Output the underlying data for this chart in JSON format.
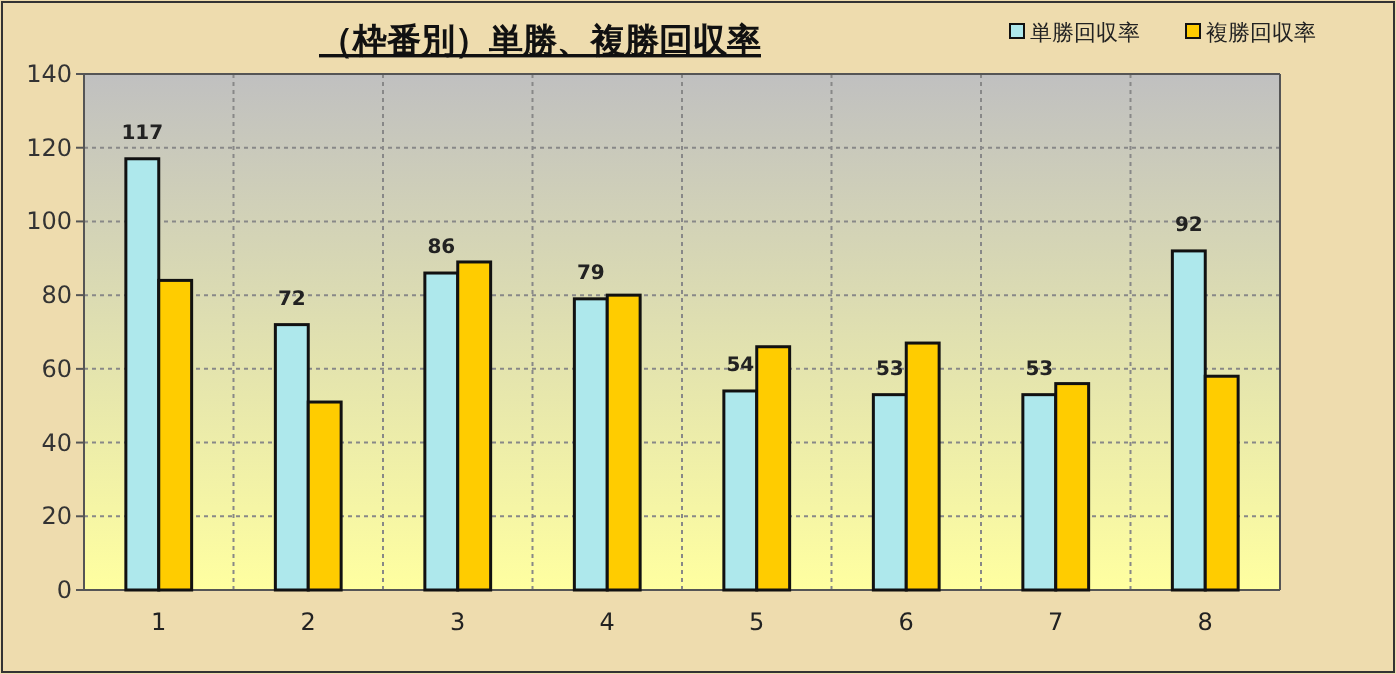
{
  "chart_data": {
    "type": "bar",
    "title": "（枠番別）単勝、複勝回収率",
    "categories": [
      "1",
      "2",
      "3",
      "4",
      "5",
      "6",
      "7",
      "8"
    ],
    "series": [
      {
        "name": "単勝回収率",
        "color": "#aee8ec",
        "values": [
          117,
          72,
          86,
          79,
          54,
          53,
          53,
          92
        ],
        "value_labels": [
          "117",
          "72",
          "86",
          "79",
          "54",
          "53",
          "53",
          "92"
        ]
      },
      {
        "name": "複勝回収率",
        "color": "#ffcc00",
        "values": [
          84,
          51,
          89,
          80,
          66,
          67,
          56,
          58
        ]
      }
    ],
    "ylim": [
      0,
      140
    ],
    "yticks": [
      0,
      20,
      40,
      60,
      80,
      100,
      120,
      140
    ],
    "grid": true,
    "legend": "top right"
  }
}
